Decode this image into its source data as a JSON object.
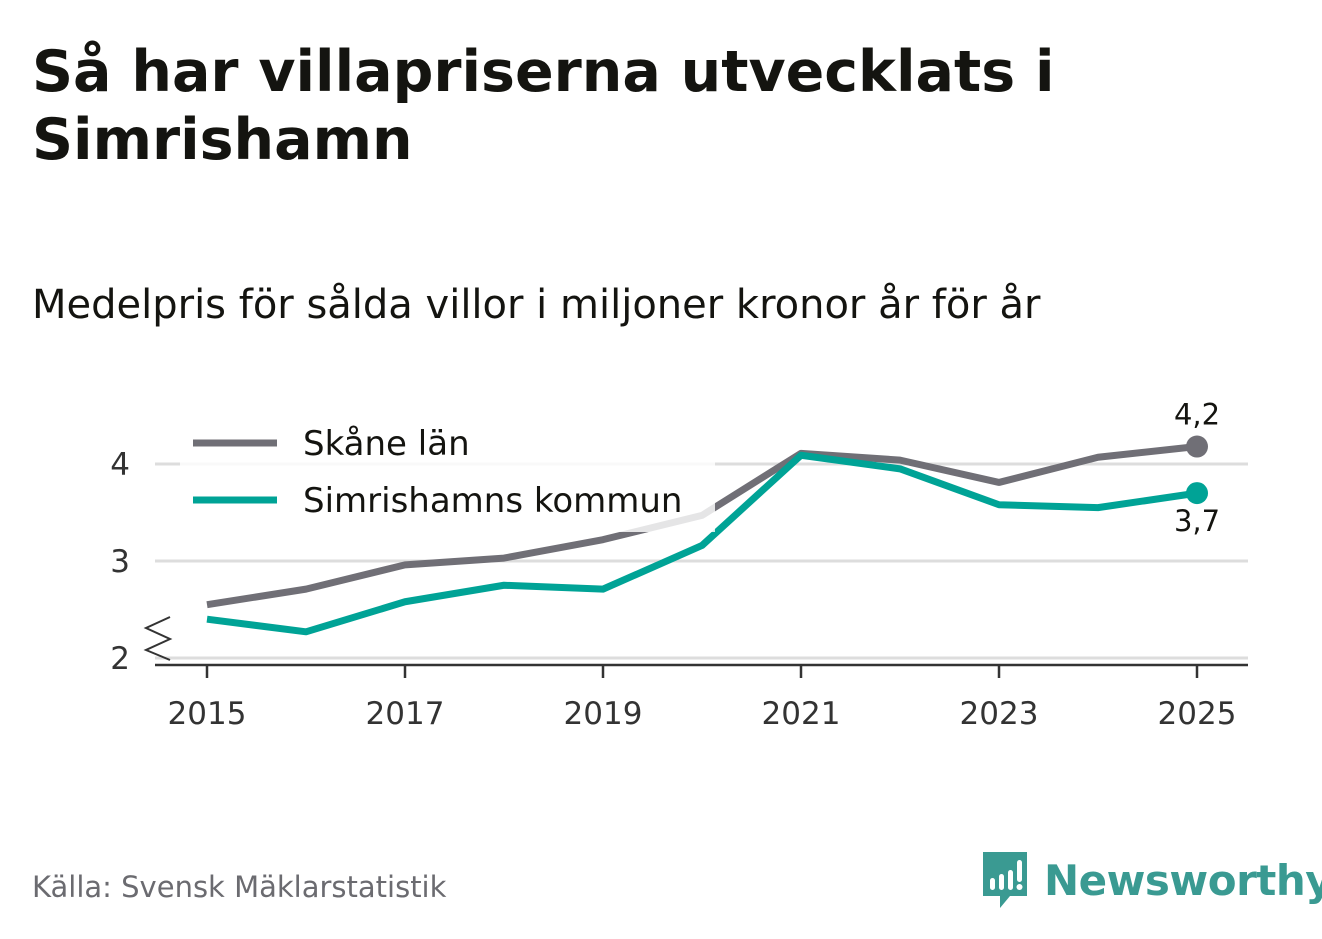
{
  "title": "Så har villapriserna utvecklats i Simrishamn",
  "subtitle": "Medelpris för sålda villor i miljoner kronor år för år",
  "source": "Källa: Svensk Mäklarstatistik",
  "logo_text": "Newsworthy",
  "colors": {
    "skane": "#706f76",
    "simrishamn": "#00a396",
    "grid": "#dddddd",
    "brand": "#3a9a92"
  },
  "chart_data": {
    "type": "line",
    "title": "Medelpris för sålda villor i miljoner kronor år för år",
    "xlabel": "",
    "ylabel": "",
    "x": [
      2015,
      2016,
      2017,
      2018,
      2019,
      2020,
      2021,
      2022,
      2023,
      2024,
      2025
    ],
    "x_ticks": [
      "2015",
      "2017",
      "2019",
      "2021",
      "2023",
      "2025"
    ],
    "y_ticks": [
      "2",
      "3",
      "4"
    ],
    "ylim": [
      2,
      4.3
    ],
    "axis_break": true,
    "grid": true,
    "legend_position": "top-left",
    "series": [
      {
        "name": "Skåne län",
        "color": "#706f76",
        "end_label": "4,2",
        "values": [
          2.55,
          2.71,
          2.96,
          3.03,
          3.22,
          3.47,
          4.11,
          4.04,
          3.81,
          4.07,
          4.18
        ]
      },
      {
        "name": "Simrishamns kommun",
        "color": "#00a396",
        "end_label": "3,7",
        "values": [
          2.4,
          2.27,
          2.58,
          2.75,
          2.71,
          3.16,
          4.09,
          3.95,
          3.58,
          3.55,
          3.7
        ]
      }
    ]
  }
}
